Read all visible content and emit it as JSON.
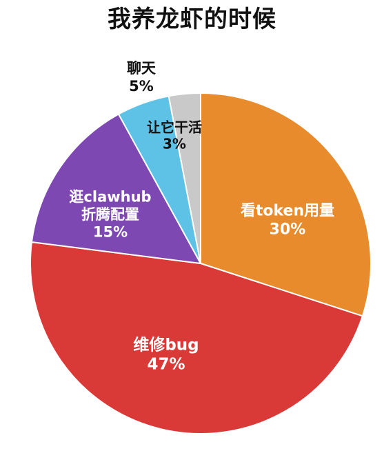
{
  "chart_data": {
    "type": "pie",
    "title": "我养龙虾的时候",
    "start": "12 o'clock, clockwise",
    "slices": [
      {
        "label": "看token用量",
        "value": 30,
        "value_text": "30%",
        "color": "#E88B2C",
        "label_color": "#ffffff"
      },
      {
        "label": "维修bug",
        "value": 47,
        "value_text": "47%",
        "color": "#D93A37",
        "label_color": "#ffffff"
      },
      {
        "label": "逛clawhub\n折腾配置",
        "value": 15,
        "value_text": "15%",
        "color": "#7E48B3",
        "label_color": "#ffffff"
      },
      {
        "label": "聊天",
        "value": 5,
        "value_text": "5%",
        "color": "#5EC2E6",
        "label_color": "#111111"
      },
      {
        "label": "让它干活",
        "value": 3,
        "value_text": "3%",
        "color": "#C9C9C9",
        "label_color": "#111111"
      }
    ]
  }
}
